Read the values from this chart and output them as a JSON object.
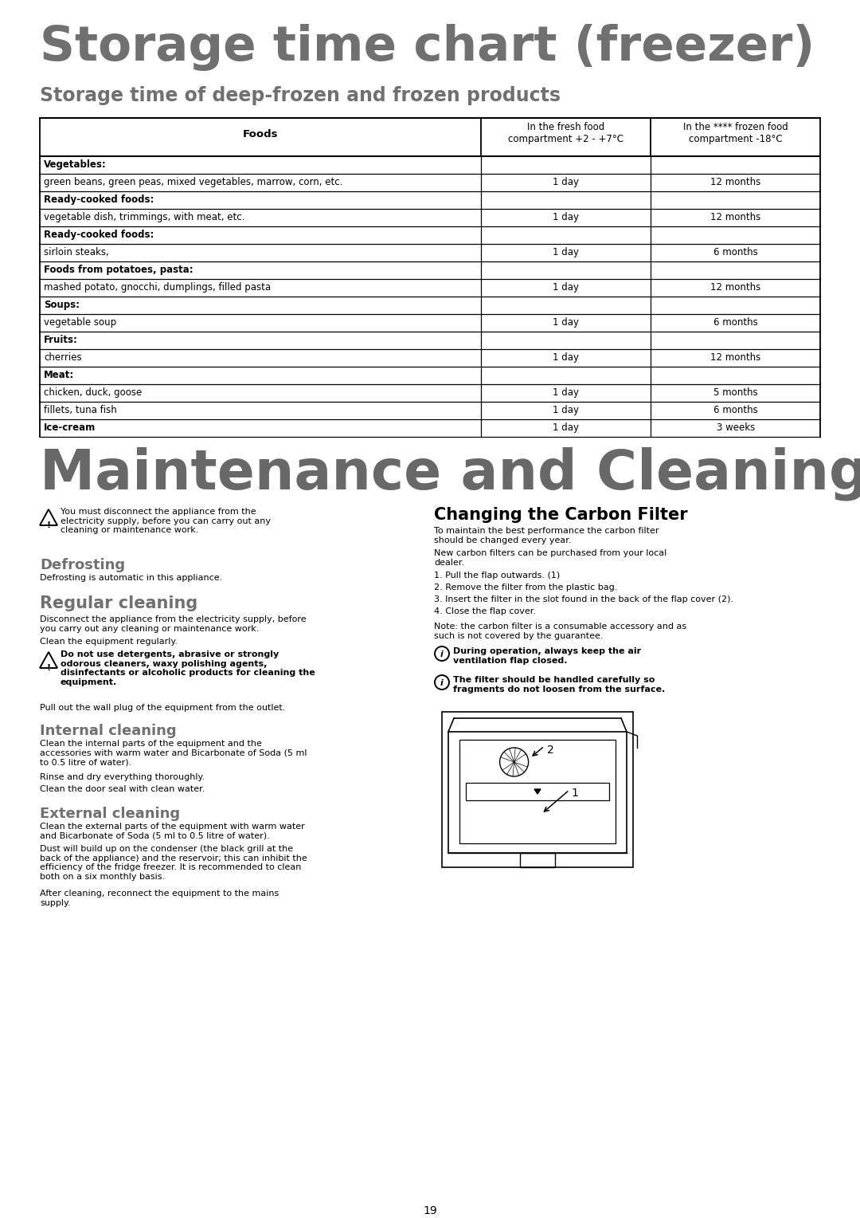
{
  "title": "Storage time chart (freezer)",
  "subtitle": "Storage time of deep-frozen and frozen products",
  "table_headers": [
    "Foods",
    "In the fresh food\ncompartment +2 - +7°C",
    "In the **** frozen food\ncompartment -18°C"
  ],
  "table_rows": [
    [
      "Vegetables:",
      "",
      ""
    ],
    [
      "green beans, green peas, mixed vegetables, marrow, corn, etc.",
      "1 day",
      "12 months"
    ],
    [
      "Ready-cooked foods:",
      "",
      ""
    ],
    [
      "vegetable dish, trimmings, with meat, etc.",
      "1 day",
      "12 months"
    ],
    [
      "Ready-cooked foods:",
      "",
      ""
    ],
    [
      "sirloin steaks,",
      "1 day",
      "6 months"
    ],
    [
      "Foods from potatoes, pasta:",
      "",
      ""
    ],
    [
      "mashed potato, gnocchi, dumplings, filled pasta",
      "1 day",
      "12 months"
    ],
    [
      "Soups:",
      "",
      ""
    ],
    [
      "vegetable soup",
      "1 day",
      "6 months"
    ],
    [
      "Fruits:",
      "",
      ""
    ],
    [
      "cherries",
      "1 day",
      "12 months"
    ],
    [
      "Meat:",
      "",
      ""
    ],
    [
      "chicken, duck, goose",
      "1 day",
      "5 months"
    ],
    [
      "fillets, tuna fish",
      "1 day",
      "6 months"
    ],
    [
      "Ice-cream",
      "1 day",
      "3 weeks"
    ]
  ],
  "bold_rows": [
    0,
    2,
    4,
    6,
    8,
    10,
    12,
    15
  ],
  "section2_title": "Maintenance and Cleaning",
  "left_col": {
    "warning_text": "You must disconnect the appliance from the electricity supply, before you can carry out any cleaning or maintenance work.",
    "defrosting_title": "Defrosting",
    "defrosting_text": "Defrosting is automatic in this appliance.",
    "regular_title": "Regular cleaning",
    "regular_text1": "Disconnect the appliance from the electricity supply, before you carry out any cleaning or maintenance work.",
    "regular_text2": "Clean the equipment regularly.",
    "warning2_text": "Do not use detergents, abrasive or strongly odorous cleaners, waxy polishing agents, disinfectants or alcoholic products for cleaning the equipment.",
    "regular_text3": "Pull out the wall plug of the equipment from the outlet.",
    "internal_title": "Internal cleaning",
    "internal_text1": "Clean the internal parts of the equipment and the accessories with warm water and Bicarbonate of Soda (5 ml to 0.5 litre of water).",
    "internal_text2": "Rinse and dry everything thoroughly.",
    "internal_text3": "Clean the door seal with clean water.",
    "external_title": "External cleaning",
    "external_text1": "Clean the external parts of the equipment with warm water and Bicarbonate of Soda (5 ml to 0.5 litre of water).",
    "external_text2": "Dust will build up on the condenser (the black grill at the back of the appliance) and the reservoir; this can inhibit the efficiency of the fridge freezer. It is recommended to clean both on a six monthly basis.",
    "external_text3": "After cleaning, reconnect the equipment to the mains supply."
  },
  "right_col": {
    "carbon_title": "Changing the Carbon Filter",
    "carbon_text1": "To maintain the best performance the carbon filter should be changed every year.",
    "carbon_text2": "New carbon filters can be purchased from your local dealer.",
    "carbon_steps": [
      "1. Pull the flap outwards. (1)",
      "2. Remove the filter from the plastic bag.",
      "3. Insert the filter in the slot found in the back of the flap cover (2).",
      "4. Close the flap cover."
    ],
    "carbon_note": "Note: the carbon filter is a consumable accessory and as such is not covered by the guarantee.",
    "info1": "During operation, always keep the air ventilation flap closed.",
    "info2": "The filter should be handled carefully so fragments do not loosen from the surface."
  },
  "page_number": "19",
  "bg_color": "#ffffff",
  "text_color": "#000000",
  "title_color": "#707070",
  "section2_color": "#686868"
}
